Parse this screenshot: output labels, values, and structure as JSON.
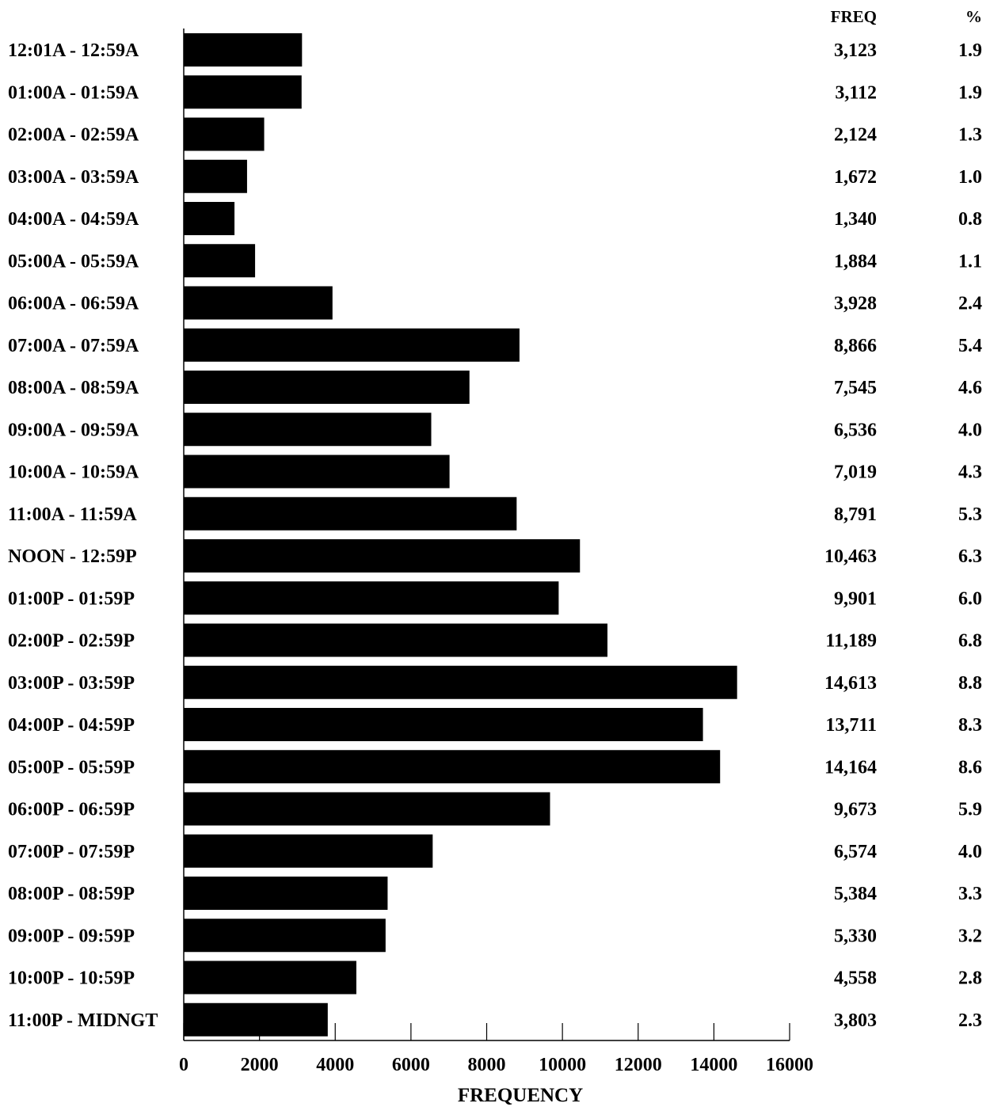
{
  "chart_data": {
    "type": "bar",
    "orientation": "horizontal",
    "xlabel": "FREQUENCY",
    "xlim": [
      0,
      16000
    ],
    "xticks": [
      0,
      2000,
      4000,
      6000,
      8000,
      10000,
      12000,
      14000,
      16000
    ],
    "grid": false,
    "bar_color": "#000000",
    "table_headers": {
      "freq": "FREQ",
      "pct": "%"
    },
    "categories": [
      "12:01A - 12:59A",
      "01:00A - 01:59A",
      "02:00A - 02:59A",
      "03:00A - 03:59A",
      "04:00A - 04:59A",
      "05:00A - 05:59A",
      "06:00A - 06:59A",
      "07:00A - 07:59A",
      "08:00A - 08:59A",
      "09:00A - 09:59A",
      "10:00A - 10:59A",
      "11:00A - 11:59A",
      "NOON - 12:59P",
      "01:00P - 01:59P",
      "02:00P - 02:59P",
      "03:00P - 03:59P",
      "04:00P - 04:59P",
      "05:00P - 05:59P",
      "06:00P - 06:59P",
      "07:00P - 07:59P",
      "08:00P - 08:59P",
      "09:00P - 09:59P",
      "10:00P - 10:59P",
      "11:00P - MIDNGT"
    ],
    "values": [
      3123,
      3112,
      2124,
      1672,
      1340,
      1884,
      3928,
      8866,
      7545,
      6536,
      7019,
      8791,
      10463,
      9901,
      11189,
      14613,
      13711,
      14164,
      9673,
      6574,
      5384,
      5330,
      4558,
      3803
    ],
    "freq_labels": [
      "3,123",
      "3,112",
      "2,124",
      "1,672",
      "1,340",
      "1,884",
      "3,928",
      "8,866",
      "7,545",
      "6,536",
      "7,019",
      "8,791",
      "10,463",
      "9,901",
      "11,189",
      "14,613",
      "13,711",
      "14,164",
      "9,673",
      "6,574",
      "5,384",
      "5,330",
      "4,558",
      "3,803"
    ],
    "percent_labels": [
      "1.9",
      "1.9",
      "1.3",
      "1.0",
      "0.8",
      "1.1",
      "2.4",
      "5.4",
      "4.6",
      "4.0",
      "4.3",
      "5.3",
      "6.3",
      "6.0",
      "6.8",
      "8.8",
      "8.3",
      "8.6",
      "5.9",
      "4.0",
      "3.3",
      "3.2",
      "2.8",
      "2.3"
    ]
  }
}
